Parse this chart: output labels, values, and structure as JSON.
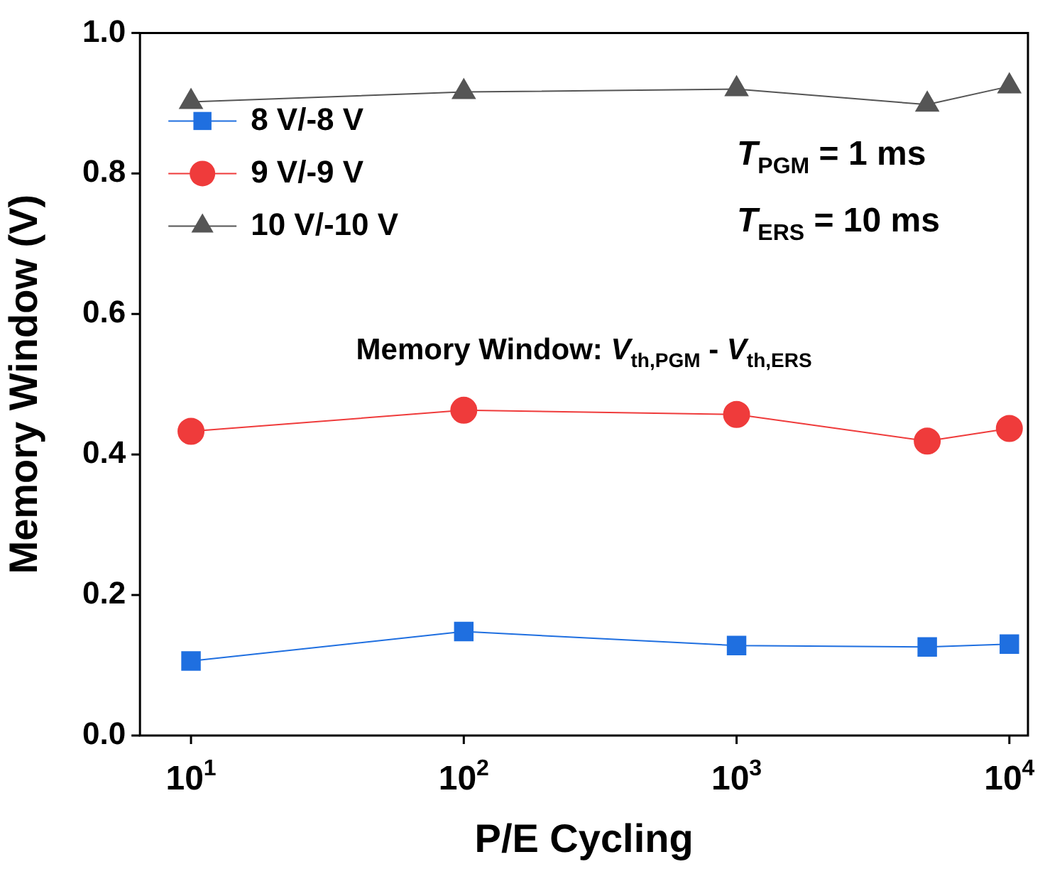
{
  "chart_data": {
    "type": "line",
    "xlabel": "P/E Cycling",
    "ylabel": "Memory Window (V)",
    "log": "x",
    "x": [
      10,
      100,
      1000,
      5000,
      10000
    ],
    "series": [
      {
        "name": "8 V/-8 V",
        "color": "#1f6fe0",
        "marker": "square",
        "values": [
          0.106,
          0.148,
          0.128,
          0.126,
          0.13
        ]
      },
      {
        "name": "9 V/-9 V",
        "color": "#ef3b3b",
        "marker": "circle",
        "values": [
          0.433,
          0.463,
          0.457,
          0.419,
          0.437
        ]
      },
      {
        "name": "10 V/-10 V",
        "color": "#555555",
        "marker": "triangle",
        "values": [
          0.902,
          0.916,
          0.92,
          0.898,
          0.924
        ]
      }
    ],
    "xlim": [
      6.5,
      11700
    ],
    "xticks": [
      {
        "value": 10,
        "label": "10$^{1}$"
      },
      {
        "value": 100,
        "label": "10$^{2}$"
      },
      {
        "value": 1000,
        "label": "10$^{3}$"
      },
      {
        "value": 10000,
        "label": "10$^{4}$"
      }
    ],
    "ylim": [
      0,
      1
    ],
    "yticks": [
      {
        "value": 0,
        "label": "0.0"
      },
      {
        "value": 0.2,
        "label": "0.2"
      },
      {
        "value": 0.4,
        "label": "0.4"
      },
      {
        "value": 0.6,
        "label": "0.6"
      },
      {
        "value": 0.8,
        "label": "0.8"
      },
      {
        "value": 1,
        "label": "1.0"
      }
    ],
    "grid": false,
    "legend": "top left",
    "line_style": "solid",
    "annotations": [
      "T$_{PGM}$ = 1 ms",
      "T$_{ERS}$ = 10 ms",
      "Memory Window: V$_{th,PGM}$ - V$_{th,ERS}$"
    ]
  }
}
